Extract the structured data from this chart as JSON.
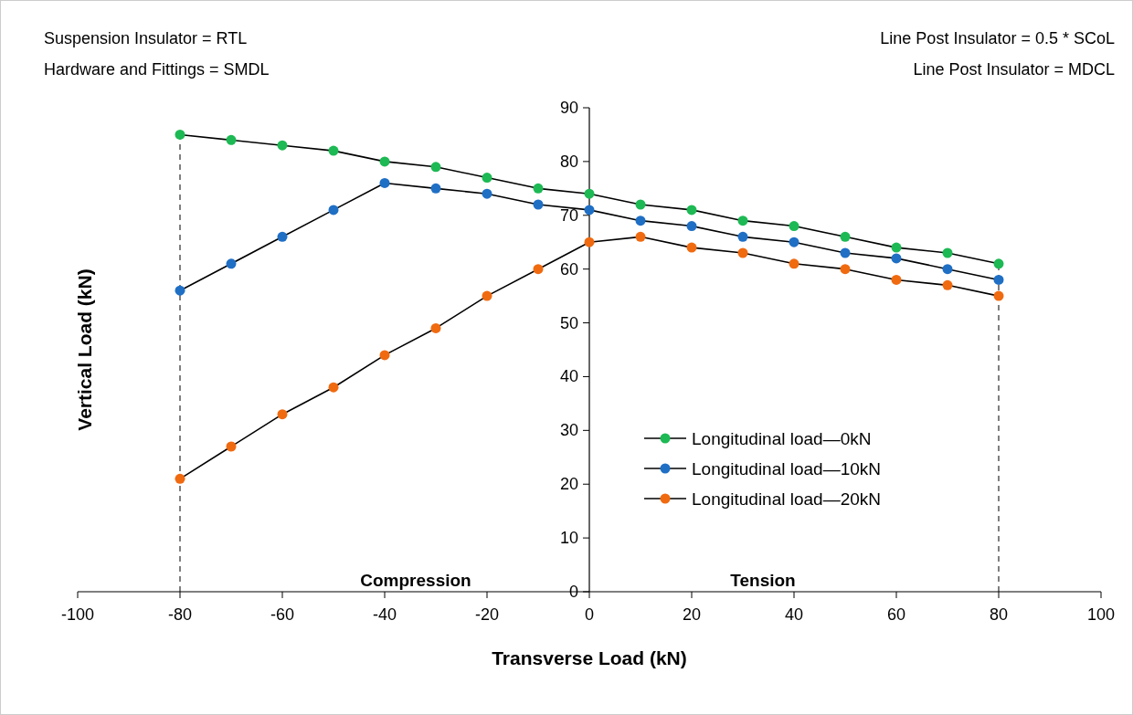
{
  "chart_data": {
    "type": "line",
    "xlabel": "Transverse Load (kN)",
    "ylabel": "Vertical Load (kN)",
    "x": [
      -80,
      -70,
      -60,
      -50,
      -40,
      -30,
      -20,
      -10,
      0,
      10,
      20,
      30,
      40,
      50,
      60,
      70,
      80
    ],
    "series": [
      {
        "name": "Longitudinal load—0kN",
        "color": "#1db954",
        "values": [
          85,
          84,
          83,
          82,
          80,
          79,
          77,
          75,
          74,
          72,
          71,
          69,
          68,
          66,
          64,
          63,
          61
        ]
      },
      {
        "name": "Longitudinal load—10kN",
        "color": "#1f6fc5",
        "values": [
          56,
          61,
          66,
          71,
          76,
          75,
          74,
          72,
          71,
          69,
          68,
          66,
          65,
          63,
          62,
          60,
          58
        ]
      },
      {
        "name": "Longitudinal load—20kN",
        "color": "#f06a10",
        "values": [
          21,
          27,
          33,
          38,
          44,
          49,
          55,
          60,
          65,
          66,
          64,
          63,
          61,
          60,
          58,
          57,
          55
        ]
      }
    ],
    "xlim": [
      -100,
      100
    ],
    "xticks": [
      -100,
      -80,
      -60,
      -40,
      -20,
      0,
      20,
      40,
      60,
      80,
      100
    ],
    "ylim": [
      0,
      90
    ],
    "yticks": [
      0,
      10,
      20,
      30,
      40,
      50,
      60,
      70,
      80,
      90
    ],
    "ref_lines": [
      {
        "axis": "x",
        "value": -80,
        "line_style": "dashed",
        "color": "#555555"
      },
      {
        "axis": "x",
        "value": 80,
        "line_style": "dashed",
        "color": "#555555"
      }
    ],
    "annotations": [
      "Suspension Insulator = RTL",
      "Hardware and Fittings = SMDL",
      "Line Post Insulator = 0.5 * SCoL",
      "Line Post Insulator = MDCL",
      "Compression",
      "Tension"
    ],
    "marker": "circle",
    "line_style": "solid",
    "grid": false,
    "legend": "bottom right"
  }
}
